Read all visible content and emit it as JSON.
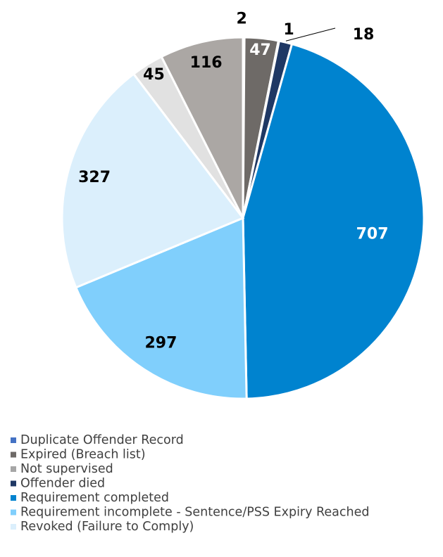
{
  "chart_data": {
    "type": "pie",
    "categories": [
      "Duplicate Offender Record",
      "Expired (Breach list)",
      "Not supervised",
      "Offender died",
      "Requirement completed",
      "Requirement incomplete - Sentence/PSS Expiry Reached",
      "Revoked (Failure to Comply)",
      null,
      null
    ],
    "values": [
      2,
      47,
      1,
      18,
      707,
      297,
      327,
      45,
      116
    ],
    "colors": [
      "#4472c4",
      "#6e6a67",
      "#a6a6a6",
      "#1f3864",
      "#0083cf",
      "#80cffc",
      "#dbeffc",
      "#e1e1e1",
      "#aba7a4"
    ]
  }
}
